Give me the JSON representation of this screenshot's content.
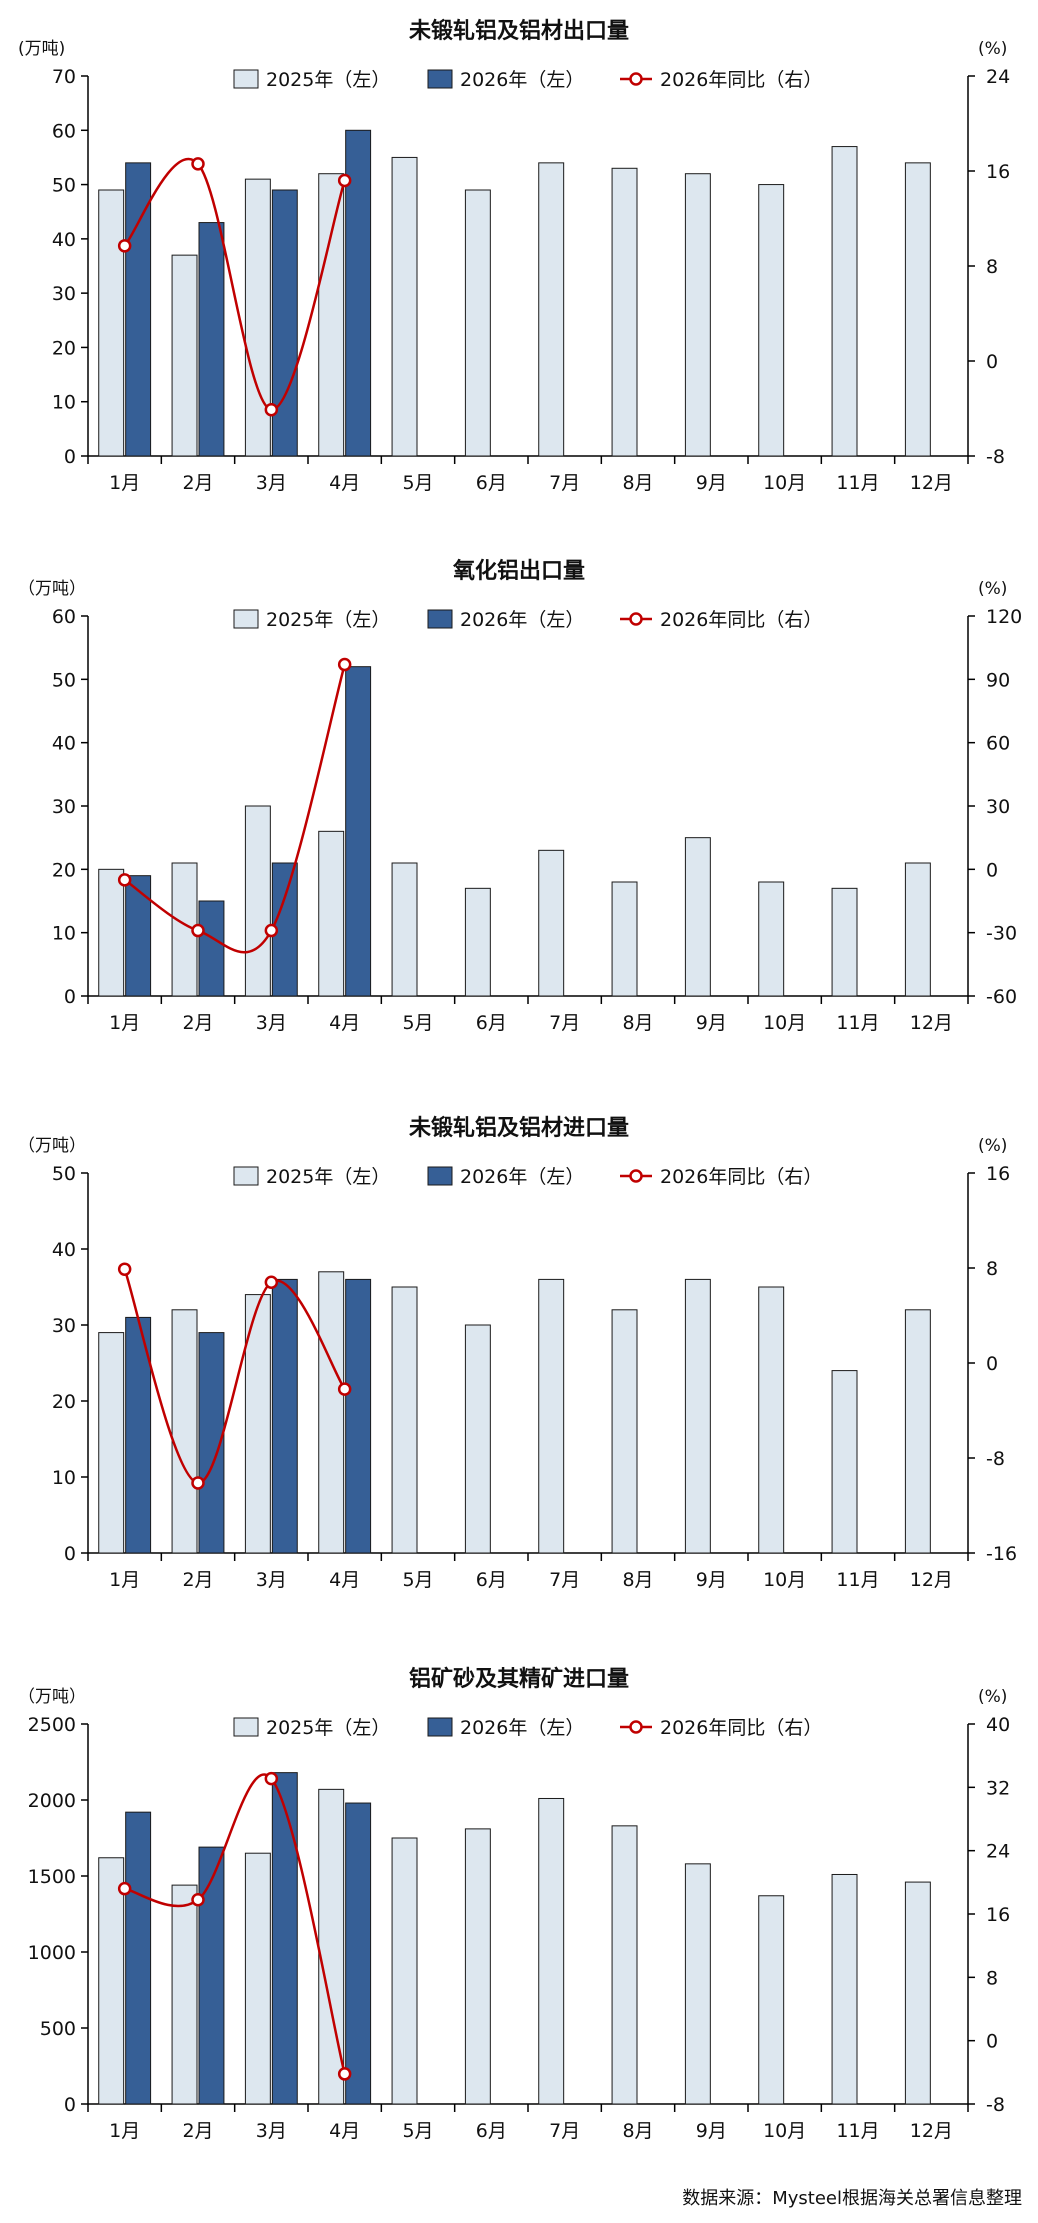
{
  "legend": {
    "s2025": "2025年（左）",
    "s2026": "2026年（左）",
    "yoy": "2026年同比（右）"
  },
  "colors": {
    "bar2025": "#dde7ef",
    "bar2026": "#365f96",
    "yoy_line": "#c00000",
    "bar_edge": "#1a1a1a"
  },
  "source": "数据来源：Mysteel根据海关总署信息整理",
  "chart_data": [
    {
      "type": "bar",
      "title": "未锻轧铝及铝材出口量",
      "ylabel": "(万吨)",
      "y2label": "(%)",
      "categories": [
        "1月",
        "2月",
        "3月",
        "4月",
        "5月",
        "6月",
        "7月",
        "8月",
        "9月",
        "10月",
        "11月",
        "12月"
      ],
      "ylim": [
        0,
        70
      ],
      "yticks": [
        0,
        10,
        20,
        30,
        40,
        50,
        60,
        70
      ],
      "y2lim": [
        -8,
        24
      ],
      "y2ticks": [
        -8,
        0,
        8,
        16,
        24
      ],
      "series": [
        {
          "name": "2025年（左）",
          "type": "bar",
          "values": [
            49,
            37,
            51,
            52,
            55,
            49,
            54,
            53,
            52,
            50,
            57,
            54
          ]
        },
        {
          "name": "2026年（左）",
          "type": "bar",
          "values": [
            54,
            43,
            49,
            60,
            null,
            null,
            null,
            null,
            null,
            null,
            null,
            null
          ]
        },
        {
          "name": "2026年同比（右）",
          "type": "line",
          "axis": "right",
          "values": [
            9.7,
            16.6,
            -4.1,
            15.2,
            null,
            null,
            null,
            null,
            null,
            null,
            null,
            null
          ]
        }
      ]
    },
    {
      "type": "bar",
      "title": "氧化铝出口量",
      "ylabel": "（万吨）",
      "y2label": "(%)",
      "categories": [
        "1月",
        "2月",
        "3月",
        "4月",
        "5月",
        "6月",
        "7月",
        "8月",
        "9月",
        "10月",
        "11月",
        "12月"
      ],
      "ylim": [
        0,
        60
      ],
      "yticks": [
        0,
        10,
        20,
        30,
        40,
        50,
        60
      ],
      "y2lim": [
        -60,
        120
      ],
      "y2ticks": [
        -60,
        -30,
        0,
        30,
        60,
        90,
        120
      ],
      "series": [
        {
          "name": "2025年（左）",
          "type": "bar",
          "values": [
            20,
            21,
            30,
            26,
            21,
            17,
            23,
            18,
            25,
            18,
            17,
            21
          ]
        },
        {
          "name": "2026年（左）",
          "type": "bar",
          "values": [
            19,
            15,
            21,
            52,
            null,
            null,
            null,
            null,
            null,
            null,
            null,
            null
          ]
        },
        {
          "name": "2026年同比（右）",
          "type": "line",
          "axis": "right",
          "values": [
            -5,
            -29,
            -29,
            97,
            null,
            null,
            null,
            null,
            null,
            null,
            null,
            null
          ]
        }
      ]
    },
    {
      "type": "bar",
      "title": "未锻轧铝及铝材进口量",
      "ylabel": "（万吨）",
      "y2label": "(%)",
      "categories": [
        "1月",
        "2月",
        "3月",
        "4月",
        "5月",
        "6月",
        "7月",
        "8月",
        "9月",
        "10月",
        "11月",
        "12月"
      ],
      "ylim": [
        0,
        50
      ],
      "yticks": [
        0,
        10,
        20,
        30,
        40,
        50
      ],
      "y2lim": [
        -16,
        16
      ],
      "y2ticks": [
        -16,
        -8,
        0,
        8,
        16
      ],
      "series": [
        {
          "name": "2025年（左）",
          "type": "bar",
          "values": [
            29,
            32,
            34,
            37,
            35,
            30,
            36,
            32,
            36,
            35,
            24,
            32
          ]
        },
        {
          "name": "2026年（左）",
          "type": "bar",
          "values": [
            31,
            29,
            36,
            36,
            null,
            null,
            null,
            null,
            null,
            null,
            null,
            null
          ]
        },
        {
          "name": "2026年同比（右）",
          "type": "line",
          "axis": "right",
          "values": [
            7.9,
            -10.1,
            6.8,
            -2.2,
            null,
            null,
            null,
            null,
            null,
            null,
            null,
            null
          ]
        }
      ]
    },
    {
      "type": "bar",
      "title": "铝矿砂及其精矿进口量",
      "ylabel": "（万吨）",
      "y2label": "(%)",
      "categories": [
        "1月",
        "2月",
        "3月",
        "4月",
        "5月",
        "6月",
        "7月",
        "8月",
        "9月",
        "10月",
        "11月",
        "12月"
      ],
      "ylim": [
        0,
        2500
      ],
      "yticks": [
        0,
        500,
        1000,
        1500,
        2000,
        2500
      ],
      "y2lim": [
        -8,
        40
      ],
      "y2ticks": [
        -8,
        0,
        8,
        16,
        24,
        32,
        40
      ],
      "series": [
        {
          "name": "2025年（左）",
          "type": "bar",
          "values": [
            1620,
            1440,
            1650,
            2070,
            1750,
            1810,
            2010,
            1830,
            1580,
            1370,
            1510,
            1460
          ]
        },
        {
          "name": "2026年（左）",
          "type": "bar",
          "values": [
            1920,
            1690,
            2180,
            1980,
            null,
            null,
            null,
            null,
            null,
            null,
            null,
            null
          ]
        },
        {
          "name": "2026年同比（右）",
          "type": "line",
          "axis": "right",
          "values": [
            19.2,
            17.8,
            33.1,
            -4.2,
            null,
            null,
            null,
            null,
            null,
            null,
            null,
            null
          ]
        }
      ]
    }
  ]
}
